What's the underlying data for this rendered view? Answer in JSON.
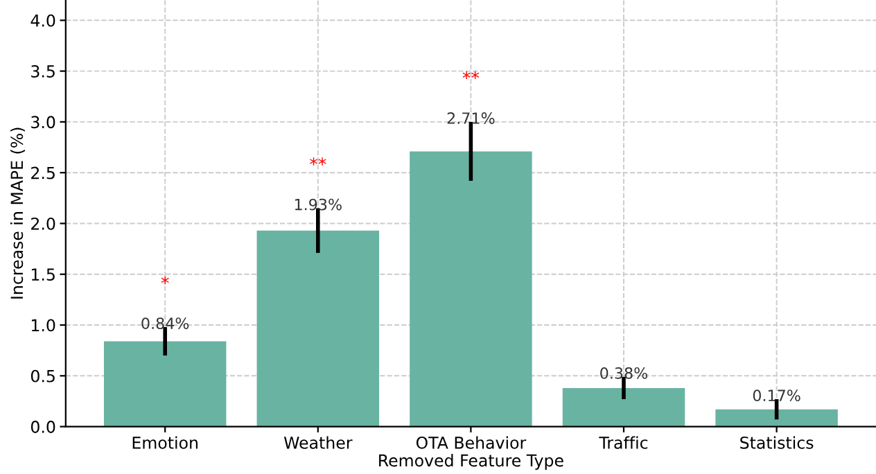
{
  "chart_data": {
    "type": "bar",
    "xlabel": "Removed Feature Type",
    "ylabel": "Increase in MAPE (%)",
    "categories": [
      "Emotion",
      "Weather",
      "OTA Behavior",
      "Traffic",
      "Statistics"
    ],
    "values": [
      0.84,
      1.93,
      2.71,
      0.38,
      0.17
    ],
    "errors": [
      0.14,
      0.22,
      0.29,
      0.11,
      0.1
    ],
    "value_labels": [
      "0.84%",
      "1.93%",
      "2.71%",
      "0.38%",
      "0.17%"
    ],
    "color": "#69b3a2",
    "annotations": [
      "*",
      "**",
      "**"
    ],
    "ylim": [
      0,
      4.2
    ],
    "yticks": [
      {
        "value": 0,
        "label": "0.0"
      },
      {
        "value": 0.5,
        "label": "0.5"
      },
      {
        "value": 1,
        "label": "1.0"
      },
      {
        "value": 1.5,
        "label": "1.5"
      },
      {
        "value": 2,
        "label": "2.0"
      },
      {
        "value": 2.5,
        "label": "2.5"
      },
      {
        "value": 3,
        "label": "3.0"
      },
      {
        "value": 3.5,
        "label": "3.5"
      },
      {
        "value": 4,
        "label": "4.0"
      }
    ],
    "grid": true
  }
}
